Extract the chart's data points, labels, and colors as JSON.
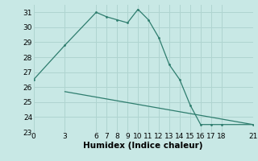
{
  "line1_x": [
    0,
    3,
    6,
    7,
    8,
    9,
    10,
    11,
    12,
    13,
    14,
    15,
    16,
    17,
    18,
    21
  ],
  "line1_y": [
    26.5,
    28.8,
    31.0,
    30.7,
    30.5,
    30.3,
    31.2,
    30.5,
    29.3,
    27.5,
    26.5,
    24.8,
    23.5,
    23.5,
    23.5,
    23.5
  ],
  "line2_x": [
    3,
    21
  ],
  "line2_y": [
    25.7,
    23.5
  ],
  "color": "#2e7d6e",
  "bg_color": "#c8e8e5",
  "grid_color": "#afd4d0",
  "xlabel": "Humidex (Indice chaleur)",
  "xlim": [
    0,
    21
  ],
  "ylim": [
    23,
    31.5
  ],
  "xticks": [
    0,
    3,
    6,
    7,
    8,
    9,
    10,
    11,
    12,
    13,
    14,
    15,
    16,
    17,
    18,
    21
  ],
  "yticks": [
    23,
    24,
    25,
    26,
    27,
    28,
    29,
    30,
    31
  ],
  "tick_fontsize": 6.5,
  "xlabel_fontsize": 7.5
}
